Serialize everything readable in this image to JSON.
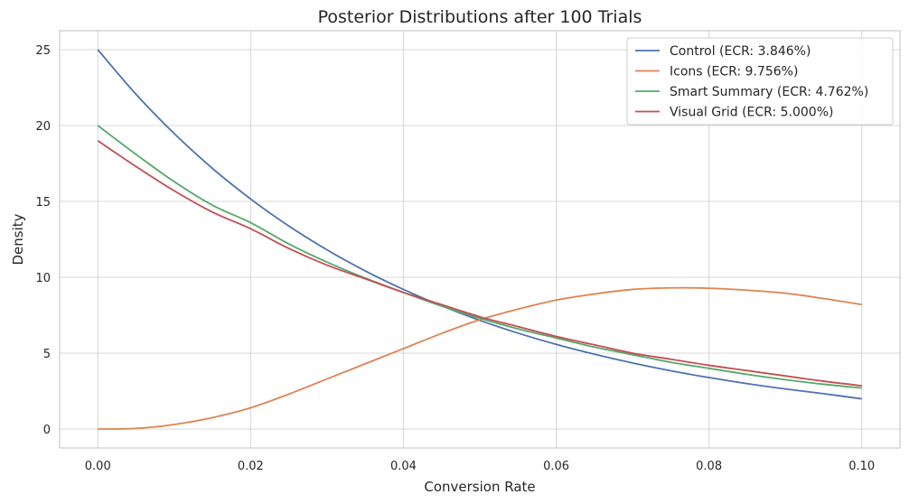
{
  "chart_data": {
    "type": "line",
    "title": "Posterior Distributions after 100 Trials",
    "xlabel": "Conversion Rate",
    "ylabel": "Density",
    "xlim": [
      -0.005,
      0.105
    ],
    "ylim": [
      -1.25,
      26.25
    ],
    "xticks": [
      0.0,
      0.02,
      0.04,
      0.06,
      0.08,
      0.1
    ],
    "xtick_labels": [
      "0.00",
      "0.02",
      "0.04",
      "0.06",
      "0.08",
      "0.10"
    ],
    "yticks": [
      0,
      5,
      10,
      15,
      20,
      25
    ],
    "ytick_labels": [
      "0",
      "5",
      "10",
      "15",
      "20",
      "25"
    ],
    "grid": true,
    "legend_position": "top-right",
    "series": [
      {
        "name": "Control (ECR: 3.846%)",
        "color": "#4c72b0",
        "x": [
          0.0,
          0.005,
          0.01,
          0.015,
          0.02,
          0.025,
          0.03,
          0.035,
          0.04,
          0.045,
          0.05,
          0.055,
          0.06,
          0.065,
          0.07,
          0.075,
          0.08,
          0.085,
          0.09,
          0.095,
          0.1
        ],
        "y": [
          25.0,
          22.06,
          19.47,
          17.18,
          15.16,
          13.38,
          11.81,
          10.42,
          9.2,
          8.12,
          7.16,
          6.32,
          5.58,
          4.93,
          4.35,
          3.84,
          3.39,
          2.99,
          2.64,
          2.33,
          1.99
        ]
      },
      {
        "name": "Icons (ECR: 9.756%)",
        "color": "#dd8452",
        "x": [
          0.0,
          0.005,
          0.01,
          0.015,
          0.02,
          0.025,
          0.03,
          0.035,
          0.04,
          0.045,
          0.05,
          0.055,
          0.06,
          0.065,
          0.07,
          0.075,
          0.08,
          0.085,
          0.09,
          0.095,
          0.1
        ],
        "y": [
          0.0,
          0.04,
          0.3,
          0.75,
          1.4,
          2.3,
          3.3,
          4.3,
          5.3,
          6.3,
          7.2,
          7.9,
          8.5,
          8.9,
          9.2,
          9.3,
          9.28,
          9.15,
          8.95,
          8.6,
          8.2
        ]
      },
      {
        "name": "Smart Summary (ECR: 4.762%)",
        "color": "#55a868",
        "x": [
          0.0,
          0.005,
          0.01,
          0.015,
          0.02,
          0.025,
          0.03,
          0.035,
          0.04,
          0.045,
          0.05,
          0.055,
          0.06,
          0.065,
          0.07,
          0.075,
          0.08,
          0.085,
          0.09,
          0.095,
          0.1
        ],
        "y": [
          20.0,
          18.1,
          16.3,
          14.75,
          13.6,
          12.2,
          11.0,
          9.95,
          9.0,
          8.1,
          7.3,
          6.6,
          6.0,
          5.4,
          4.9,
          4.4,
          4.0,
          3.6,
          3.25,
          2.95,
          2.7
        ]
      },
      {
        "name": "Visual Grid (ECR: 5.000%)",
        "color": "#c44e52",
        "x": [
          0.0,
          0.005,
          0.01,
          0.015,
          0.02,
          0.025,
          0.03,
          0.035,
          0.04,
          0.045,
          0.05,
          0.055,
          0.06,
          0.065,
          0.07,
          0.075,
          0.08,
          0.085,
          0.09,
          0.095,
          0.1
        ],
        "y": [
          19.0,
          17.3,
          15.7,
          14.3,
          13.2,
          11.9,
          10.8,
          9.9,
          9.0,
          8.2,
          7.4,
          6.75,
          6.1,
          5.55,
          5.0,
          4.6,
          4.2,
          3.85,
          3.5,
          3.15,
          2.85
        ]
      }
    ]
  }
}
